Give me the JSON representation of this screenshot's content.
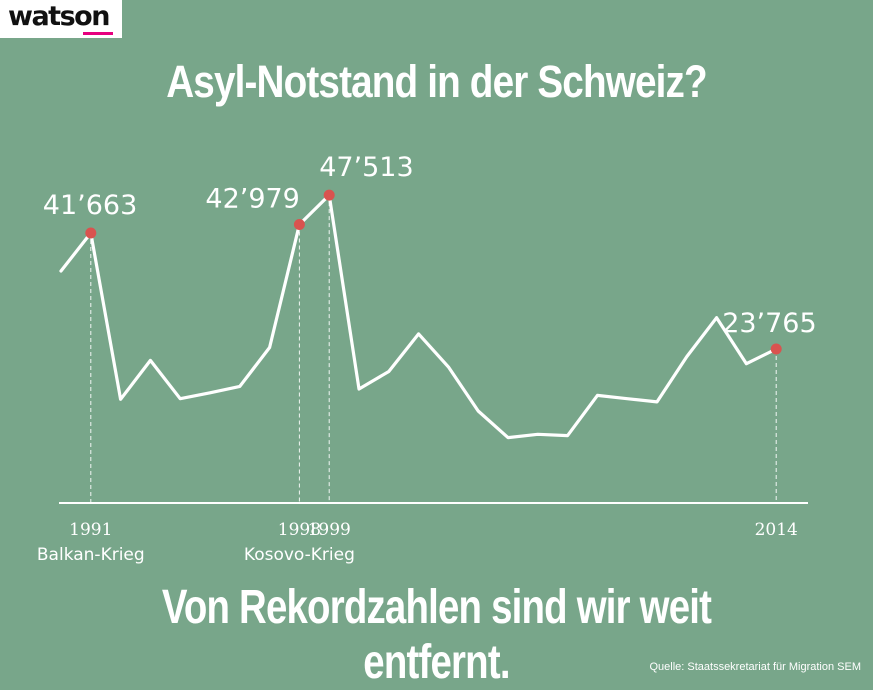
{
  "brand": {
    "logo_text": "watson",
    "accent": "#e6007e"
  },
  "title": "Asyl-Notstand in der Schweiz?",
  "subtitle": "Von Rekordzahlen sind wir weit entfernt.",
  "source": "Quelle: Staatssekretariat für Migration SEM",
  "colors": {
    "background": "#78a68a",
    "line": "#ffffff",
    "marker": "#d9534f"
  },
  "chart_data": {
    "type": "line",
    "title": "Asyl-Notstand in der Schweiz?",
    "xlabel": "",
    "ylabel": "",
    "x": [
      1990,
      1991,
      1992,
      1993,
      1994,
      1995,
      1996,
      1997,
      1998,
      1999,
      2000,
      2001,
      2002,
      2003,
      2004,
      2005,
      2006,
      2007,
      2008,
      2009,
      2010,
      2011,
      2012,
      2013,
      2014
    ],
    "values": [
      35800,
      41663,
      16000,
      22000,
      16100,
      17000,
      18000,
      24000,
      42979,
      47513,
      17600,
      20300,
      26100,
      21000,
      14200,
      10100,
      10600,
      10400,
      16600,
      16100,
      15600,
      22600,
      28600,
      21500,
      23765
    ],
    "ylim": [
      0,
      50000
    ],
    "highlights": [
      {
        "year": 1991,
        "value": 41663,
        "label": "41’663",
        "tick": "1991",
        "event": "Balkan-Krieg"
      },
      {
        "year": 1998,
        "value": 42979,
        "label": "42’979",
        "tick": "1998",
        "event": "Kosovo-Krieg"
      },
      {
        "year": 1999,
        "value": 47513,
        "label": "47’513",
        "tick": "1999",
        "event": ""
      },
      {
        "year": 2014,
        "value": 23765,
        "label": "23’765",
        "tick": "2014",
        "event": ""
      }
    ],
    "grid": false,
    "legend": "none"
  }
}
